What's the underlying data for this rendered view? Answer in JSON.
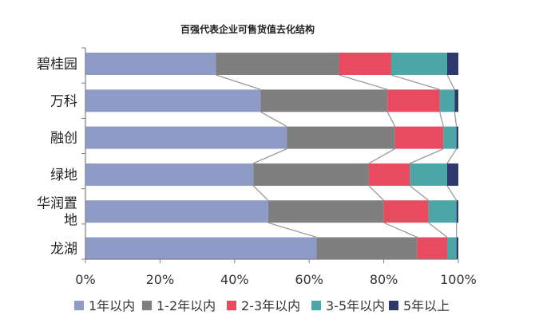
{
  "chart_data": {
    "type": "bar",
    "orientation": "horizontal",
    "stacked": true,
    "title": "百强代表企业可售货值去化结构",
    "categories": [
      "碧桂园",
      "万科",
      "融创",
      "绿地",
      "华润置地",
      "龙湖"
    ],
    "category_lines": [
      [
        "碧桂园"
      ],
      [
        "万科"
      ],
      [
        "融创"
      ],
      [
        "绿地"
      ],
      [
        "华润置",
        "地"
      ],
      [
        "龙湖"
      ]
    ],
    "series": [
      {
        "name": "1年以内",
        "color": "#8E9BC7",
        "values": [
          35,
          47,
          54,
          45,
          49,
          62
        ]
      },
      {
        "name": "1-2年以内",
        "color": "#7F7F7F",
        "values": [
          33,
          34,
          29,
          31,
          31,
          27
        ]
      },
      {
        "name": "2-3年以内",
        "color": "#E84A5F",
        "values": [
          14,
          14,
          13,
          11,
          12,
          8
        ]
      },
      {
        "name": "3-5年以内",
        "color": "#4DA6A6",
        "values": [
          15,
          4,
          3.5,
          10,
          7.5,
          2.5
        ]
      },
      {
        "name": "5年以上",
        "color": "#2E3A6E",
        "values": [
          3,
          1,
          0.5,
          3,
          0.5,
          0.5
        ]
      }
    ],
    "xlim": [
      0,
      100
    ],
    "xticks": [
      "0%",
      "20%",
      "40%",
      "60%",
      "80%",
      "100%"
    ],
    "connector_lines": true,
    "legend_position": "bottom",
    "grid": false
  }
}
